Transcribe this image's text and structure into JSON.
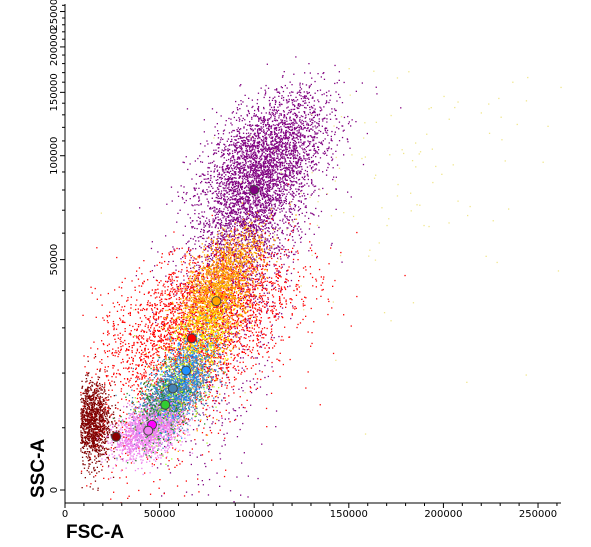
{
  "chart_data": {
    "type": "scatter",
    "title": "",
    "xlabel": "FSC-A",
    "ylabel": "SSC-A",
    "xlim": [
      0,
      262144
    ],
    "ylim": [
      0,
      262144
    ],
    "y_scale": "biexponential",
    "x_ticks": [
      {
        "value": 0,
        "label": "0"
      },
      {
        "value": 50000,
        "label": "50000"
      },
      {
        "value": 100000,
        "label": "100000"
      },
      {
        "value": 150000,
        "label": "150000"
      },
      {
        "value": 200000,
        "label": "200000"
      },
      {
        "value": 250000,
        "label": "250000"
      }
    ],
    "y_ticks": [
      {
        "value": 0,
        "label": "0"
      },
      {
        "value": 50000,
        "label": "50000"
      },
      {
        "value": 100000,
        "label": "100000"
      },
      {
        "value": 150000,
        "label": "150000"
      },
      {
        "value": 200000,
        "label": "200000"
      },
      {
        "value": 250000,
        "label": "250000"
      }
    ],
    "grid": false,
    "legend": "none",
    "series": [
      {
        "color": "#800080",
        "centroid": [
          100000,
          80000
        ],
        "spread": [
          18000,
          26000
        ],
        "tilt": 0.45,
        "points": 5200
      },
      {
        "color": "#ff0000",
        "centroid": [
          68000,
          30000
        ],
        "spread": [
          26000,
          10000
        ],
        "tilt": 0.35,
        "points": 3400
      },
      {
        "color": "#ffa500",
        "centroid": [
          79000,
          38000
        ],
        "spread": [
          12000,
          8000
        ],
        "tilt": 0.6,
        "points": 2200
      },
      {
        "color": "#4682b4",
        "centroid": [
          57000,
          16000
        ],
        "spread": [
          9000,
          3000
        ],
        "tilt": 0.4,
        "points": 1600
      },
      {
        "color": "#800000",
        "centroid": [
          14000,
          11000
        ],
        "spread": [
          5000,
          3500
        ],
        "tilt": 0.0,
        "points": 1300
      },
      {
        "color": "#ee82ee",
        "centroid": [
          44000,
          9500
        ],
        "spread": [
          9000,
          2000
        ],
        "tilt": 0.3,
        "points": 1500
      },
      {
        "color": "#228b22",
        "centroid": [
          52000,
          14000
        ],
        "spread": [
          9000,
          3500
        ],
        "tilt": 0.3,
        "points": 280
      },
      {
        "color": "#1e90ff",
        "centroid": [
          64000,
          21000
        ],
        "spread": [
          8000,
          4000
        ],
        "tilt": 0.4,
        "points": 380
      },
      {
        "color": "#ffff00",
        "centroid": [
          74000,
          30000
        ],
        "spread": [
          9000,
          5000
        ],
        "tilt": 0.3,
        "points": 250
      },
      {
        "color": "#adff2f",
        "centroid": [
          60000,
          18000
        ],
        "spread": [
          10000,
          5000
        ],
        "tilt": 0.3,
        "points": 180
      },
      {
        "color": "#f0e68c",
        "centroid": [
          170000,
          90000
        ],
        "spread": [
          50000,
          35000
        ],
        "tilt": 0.2,
        "points": 120
      }
    ],
    "centroid_markers": [
      {
        "x": 100000,
        "y": 80000,
        "color": "#800080"
      },
      {
        "x": 80000,
        "y": 37000,
        "color": "#ffa500"
      },
      {
        "x": 67000,
        "y": 27500,
        "color": "#ff0000"
      },
      {
        "x": 64000,
        "y": 20500,
        "color": "#1e90ff"
      },
      {
        "x": 57000,
        "y": 17000,
        "color": "#4682b4"
      },
      {
        "x": 53000,
        "y": 14000,
        "color": "#32cd32"
      },
      {
        "x": 46000,
        "y": 10500,
        "color": "#ff00ff"
      },
      {
        "x": 44000,
        "y": 9500,
        "color": "#ee82ee"
      },
      {
        "x": 27000,
        "y": 8500,
        "color": "#8b0000"
      }
    ]
  }
}
